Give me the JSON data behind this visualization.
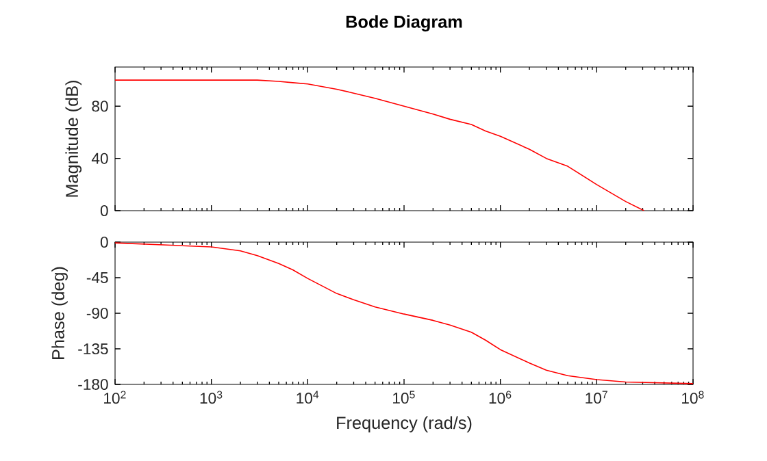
{
  "chart_data": [
    {
      "type": "line",
      "title": "Bode Diagram",
      "ylabel": "Magnitude (dB)",
      "series": [
        {
          "color": "#ff0000",
          "x": [
            100,
            1000,
            2000,
            3000,
            5000,
            7000,
            10000,
            20000,
            30000,
            50000,
            100000,
            200000,
            300000,
            500000,
            700000,
            1000000,
            2000000,
            3000000,
            5000000,
            10000000,
            20000000,
            31000000
          ],
          "values": [
            100,
            100,
            100,
            100,
            99,
            98,
            97,
            93,
            90,
            86,
            80,
            74,
            70,
            66,
            61,
            57,
            47,
            40,
            34,
            20,
            7,
            0
          ]
        }
      ],
      "xlim": [
        100,
        100000000
      ],
      "ylim": [
        0,
        110
      ],
      "log": "x",
      "tick_labels": "y",
      "xticks": [
        {
          "value": 100,
          "label": null
        },
        {
          "value": 1000,
          "label": null
        },
        {
          "value": 10000,
          "label": null
        },
        {
          "value": 100000,
          "label": null
        },
        {
          "value": 1000000,
          "label": null
        },
        {
          "value": 10000000,
          "label": null
        },
        {
          "value": 100000000,
          "label": null
        }
      ],
      "yticks": [
        0,
        40,
        80
      ]
    },
    {
      "type": "line",
      "xlabel": "Frequency (rad/s)",
      "ylabel": "Phase (deg)",
      "series": [
        {
          "color": "#ff0000",
          "x": [
            100,
            1000,
            2000,
            3000,
            5000,
            7000,
            10000,
            20000,
            30000,
            50000,
            100000,
            200000,
            300000,
            500000,
            700000,
            1000000,
            2000000,
            3000000,
            5000000,
            10000000,
            20000000,
            100000000
          ],
          "values": [
            -1,
            -6,
            -11,
            -17,
            -27,
            -35,
            -46,
            -65,
            -73,
            -82,
            -91,
            -99,
            -105,
            -114,
            -124,
            -136,
            -153,
            -162,
            -169,
            -174,
            -177,
            -179
          ]
        }
      ],
      "xlim": [
        100,
        100000000
      ],
      "ylim": [
        -180,
        0
      ],
      "log": "x",
      "xticks": [
        {
          "value": 100,
          "label": "10$^{2}$"
        },
        {
          "value": 1000,
          "label": "10$^{3}$"
        },
        {
          "value": 10000,
          "label": "10$^{4}$"
        },
        {
          "value": 100000,
          "label": "10$^{5}$"
        },
        {
          "value": 1000000,
          "label": "10$^{6}$"
        },
        {
          "value": 10000000,
          "label": "10$^{7}$"
        },
        {
          "value": 100000000,
          "label": "10$^{8}$"
        }
      ],
      "yticks": [
        -180,
        -135,
        -90,
        -45,
        0
      ]
    }
  ]
}
